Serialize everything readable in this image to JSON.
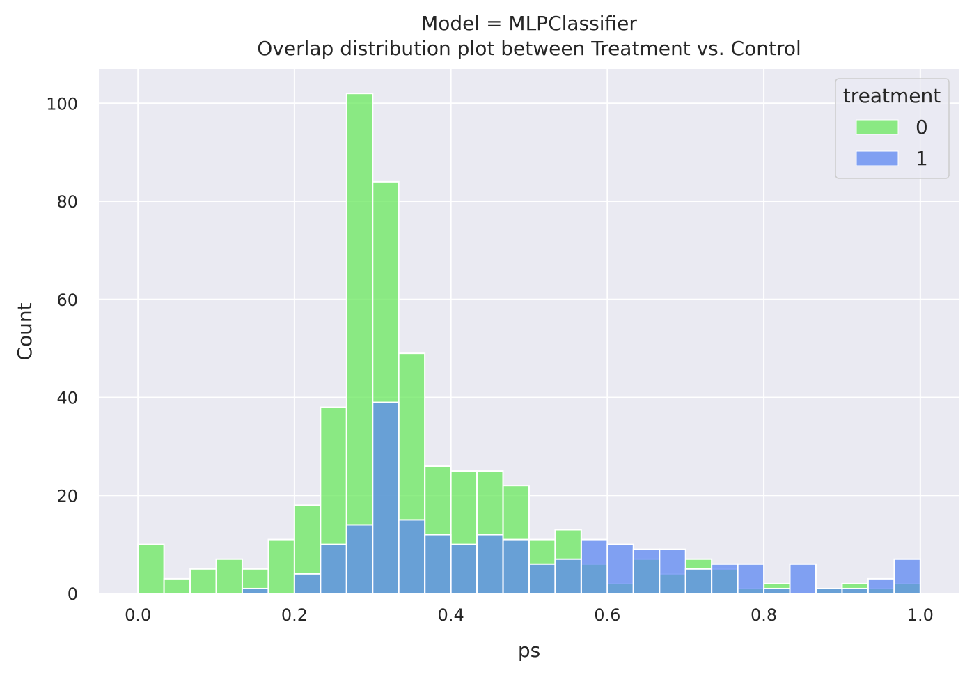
{
  "chart_data": {
    "type": "histogram",
    "title_line1": "Model = MLPClassifier",
    "title_line2": "Overlap distribution plot between Treatment vs. Control",
    "xlabel": "ps",
    "ylabel": "Count",
    "xlim": [
      -0.05,
      1.05
    ],
    "ylim": [
      0,
      107
    ],
    "xticks": [
      0.0,
      0.2,
      0.4,
      0.6,
      0.8,
      1.0
    ],
    "xtick_labels": [
      "0.0",
      "0.2",
      "0.4",
      "0.6",
      "0.8",
      "1.0"
    ],
    "yticks": [
      0,
      20,
      40,
      60,
      80,
      100
    ],
    "ytick_labels": [
      "0",
      "20",
      "40",
      "60",
      "80",
      "100"
    ],
    "grid": true,
    "bin_width": 0.0333,
    "bin_edges": [
      0.0,
      0.0333,
      0.0667,
      0.1,
      0.1333,
      0.1667,
      0.2,
      0.2333,
      0.2667,
      0.3,
      0.3333,
      0.3667,
      0.4,
      0.4333,
      0.4667,
      0.5,
      0.5333,
      0.5667,
      0.6,
      0.6333,
      0.6667,
      0.7,
      0.7333,
      0.7667,
      0.8,
      0.8333,
      0.8667,
      0.9,
      0.9333,
      0.9667,
      1.0
    ],
    "legend": {
      "title": "treatment",
      "placement": "top-right",
      "entries": [
        "0",
        "1"
      ]
    },
    "series": [
      {
        "name": "0",
        "color": "#69e85d",
        "counts": [
          10,
          3,
          5,
          7,
          5,
          11,
          18,
          38,
          102,
          84,
          49,
          26,
          25,
          25,
          22,
          11,
          13,
          6,
          2,
          7,
          4,
          7,
          5,
          1,
          2,
          0,
          1,
          2,
          1,
          2
        ]
      },
      {
        "name": "1",
        "color": "#5c87f2",
        "counts": [
          0,
          0,
          0,
          0,
          1,
          0,
          4,
          10,
          14,
          39,
          15,
          12,
          10,
          12,
          11,
          6,
          7,
          11,
          10,
          9,
          9,
          5,
          6,
          6,
          1,
          6,
          1,
          1,
          3,
          7
        ]
      }
    ],
    "overlap_color": "#4cc97b",
    "background_color": "#eaeaf2"
  }
}
